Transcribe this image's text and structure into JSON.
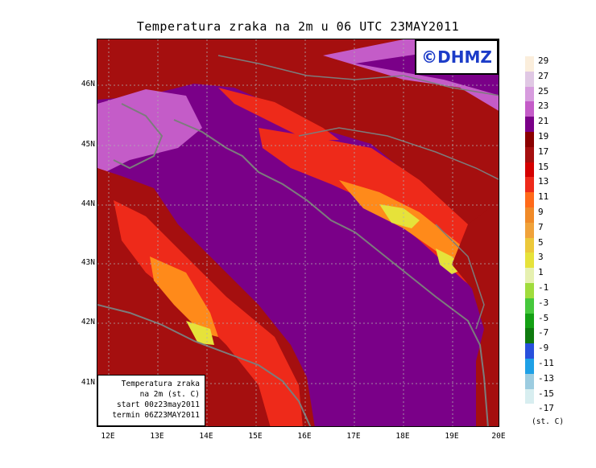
{
  "title": "Temperatura zraka na 2m u 06 UTC 23MAY2011",
  "logo": "©DHMZ",
  "info_box": {
    "line1": "Temperatura zraka",
    "line2": "na 2m (st. C)",
    "line3": "start 00z23may2011",
    "line4": "termin 06Z23MAY2011"
  },
  "lat_labels": [
    "46N",
    "45N",
    "44N",
    "43N",
    "42N",
    "41N"
  ],
  "lon_labels": [
    "12E",
    "13E",
    "14E",
    "15E",
    "16E",
    "17E",
    "18E",
    "19E",
    "20E"
  ],
  "legend": {
    "labels": [
      "29",
      "27",
      "25",
      "23",
      "21",
      "19",
      "17",
      "15",
      "13",
      "11",
      "9",
      "7",
      "5",
      "3",
      "1",
      "-1",
      "-3",
      "-5",
      "-7",
      "-9",
      "-11",
      "-13",
      "-15",
      "-17"
    ],
    "colors": [
      "#fbeedc",
      "#e0c8e4",
      "#d79cde",
      "#c45cc8",
      "#7a0088",
      "#8b0000",
      "#a50f0f",
      "#d40000",
      "#ee2a1a",
      "#ff6a1a",
      "#f08a28",
      "#f0a23a",
      "#ecc83a",
      "#e6e23a",
      "#e6f0b0",
      "#a0dc3c",
      "#46c83c",
      "#14a014",
      "#0f7a0f",
      "#2850dc",
      "#1ea0e6",
      "#9ccce0",
      "#d8eef0",
      "#ffffff"
    ],
    "unit": "(st. C)"
  },
  "colors": {
    "sea": "#7a0088",
    "warm_land": "#a50f0f",
    "hot_land": "#ee2a1a",
    "orange": "#ff8a1a",
    "yellow": "#e6e23a",
    "lilac": "#c45cc8",
    "coast_line": "#7c7c7c",
    "logo_text": "#1c3cc8"
  }
}
